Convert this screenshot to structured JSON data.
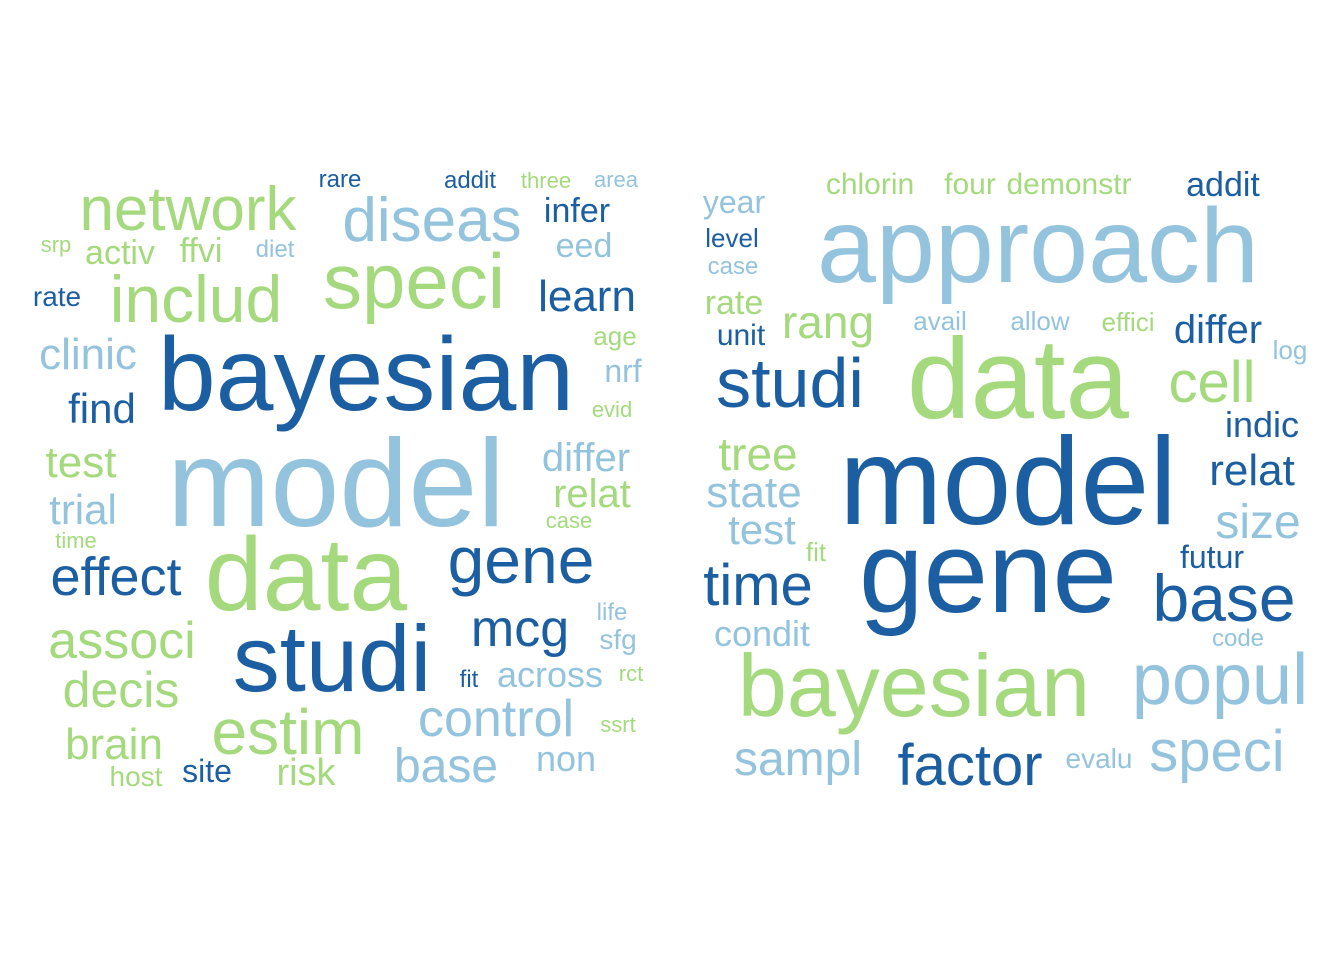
{
  "colors": {
    "dark": "#1c5ea2",
    "light": "#94c3dd",
    "green": "#a4da7d"
  },
  "clouds": [
    {
      "words": [
        {
          "t": "model",
          "c": "light"
        },
        {
          "t": "bayesian",
          "c": "dark"
        },
        {
          "t": "data",
          "c": "green"
        },
        {
          "t": "studi",
          "c": "dark"
        },
        {
          "t": "speci",
          "c": "green"
        },
        {
          "t": "includ",
          "c": "green"
        },
        {
          "t": "network",
          "c": "green"
        },
        {
          "t": "diseas",
          "c": "light"
        },
        {
          "t": "gene",
          "c": "dark"
        },
        {
          "t": "estim",
          "c": "green"
        },
        {
          "t": "control",
          "c": "light"
        },
        {
          "t": "effect",
          "c": "dark"
        },
        {
          "t": "associ",
          "c": "green"
        },
        {
          "t": "mcg",
          "c": "dark"
        },
        {
          "t": "decis",
          "c": "green"
        },
        {
          "t": "base",
          "c": "light"
        },
        {
          "t": "clinic",
          "c": "light"
        },
        {
          "t": "learn",
          "c": "dark"
        },
        {
          "t": "brain",
          "c": "green"
        },
        {
          "t": "find",
          "c": "dark"
        },
        {
          "t": "test",
          "c": "green"
        },
        {
          "t": "trial",
          "c": "light"
        },
        {
          "t": "differ",
          "c": "light"
        },
        {
          "t": "relat",
          "c": "green"
        },
        {
          "t": "risk",
          "c": "green"
        },
        {
          "t": "across",
          "c": "light"
        },
        {
          "t": "non",
          "c": "light"
        },
        {
          "t": "infer",
          "c": "dark"
        },
        {
          "t": "eed",
          "c": "light"
        },
        {
          "t": "activ",
          "c": "green"
        },
        {
          "t": "ffvi",
          "c": "green"
        },
        {
          "t": "site",
          "c": "dark"
        },
        {
          "t": "nrf",
          "c": "light"
        },
        {
          "t": "rate",
          "c": "dark"
        },
        {
          "t": "host",
          "c": "green"
        },
        {
          "t": "sfg",
          "c": "light"
        },
        {
          "t": "rare",
          "c": "dark"
        },
        {
          "t": "addit",
          "c": "dark"
        },
        {
          "t": "three",
          "c": "green"
        },
        {
          "t": "area",
          "c": "light"
        },
        {
          "t": "srp",
          "c": "green"
        },
        {
          "t": "diet",
          "c": "light"
        },
        {
          "t": "age",
          "c": "green"
        },
        {
          "t": "evid",
          "c": "green"
        },
        {
          "t": "case",
          "c": "green"
        },
        {
          "t": "time",
          "c": "green"
        },
        {
          "t": "life",
          "c": "light"
        },
        {
          "t": "fit",
          "c": "dark"
        },
        {
          "t": "rct",
          "c": "green"
        },
        {
          "t": "ssrt",
          "c": "green"
        }
      ]
    },
    {
      "words": [
        {
          "t": "model",
          "c": "dark"
        },
        {
          "t": "gene",
          "c": "dark"
        },
        {
          "t": "approach",
          "c": "light"
        },
        {
          "t": "data",
          "c": "green"
        },
        {
          "t": "bayesian",
          "c": "green"
        },
        {
          "t": "studi",
          "c": "dark"
        },
        {
          "t": "popul",
          "c": "light"
        },
        {
          "t": "base",
          "c": "dark"
        },
        {
          "t": "factor",
          "c": "dark"
        },
        {
          "t": "speci",
          "c": "light"
        },
        {
          "t": "cell",
          "c": "green"
        },
        {
          "t": "time",
          "c": "dark"
        },
        {
          "t": "sampl",
          "c": "light"
        },
        {
          "t": "rang",
          "c": "green"
        },
        {
          "t": "tree",
          "c": "green"
        },
        {
          "t": "state",
          "c": "light"
        },
        {
          "t": "size",
          "c": "light"
        },
        {
          "t": "relat",
          "c": "dark"
        },
        {
          "t": "test",
          "c": "light"
        },
        {
          "t": "differ",
          "c": "dark"
        },
        {
          "t": "condit",
          "c": "light"
        },
        {
          "t": "indic",
          "c": "dark"
        },
        {
          "t": "addit",
          "c": "dark"
        },
        {
          "t": "rate",
          "c": "green"
        },
        {
          "t": "year",
          "c": "light"
        },
        {
          "t": "chlorin",
          "c": "green"
        },
        {
          "t": "four",
          "c": "green"
        },
        {
          "t": "demonstr",
          "c": "green"
        },
        {
          "t": "futur",
          "c": "dark"
        },
        {
          "t": "unit",
          "c": "dark"
        },
        {
          "t": "evalu",
          "c": "light"
        },
        {
          "t": "level",
          "c": "dark"
        },
        {
          "t": "avail",
          "c": "light"
        },
        {
          "t": "allow",
          "c": "light"
        },
        {
          "t": "effici",
          "c": "green"
        },
        {
          "t": "case",
          "c": "light"
        },
        {
          "t": "fit",
          "c": "green"
        },
        {
          "t": "code",
          "c": "light"
        },
        {
          "t": "log",
          "c": "light"
        }
      ]
    }
  ]
}
